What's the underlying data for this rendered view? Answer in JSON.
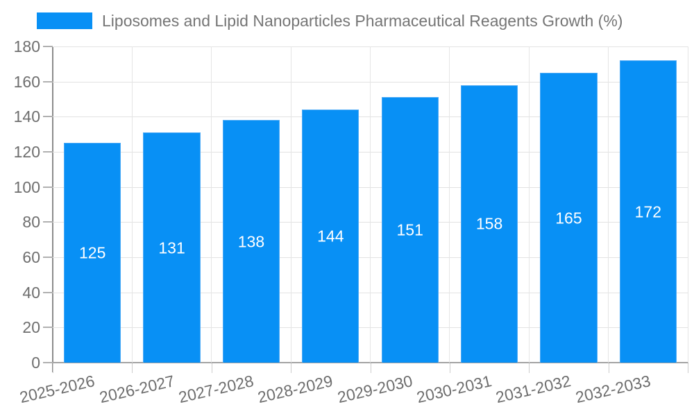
{
  "chart_data": {
    "type": "bar",
    "title": "",
    "legend_label": "Liposomes and Lipid Nanoparticles Pharmaceutical Reagents Growth (%)",
    "legend_position": "top-left",
    "categories": [
      "2025-2026",
      "2026-2027",
      "2027-2028",
      "2028-2029",
      "2029-2030",
      "2030-2031",
      "2031-2032",
      "2032-2033"
    ],
    "values": [
      125,
      131,
      138,
      144,
      151,
      158,
      165,
      172
    ],
    "xlabel": "",
    "ylabel": "",
    "ylim": [
      0,
      180
    ],
    "yticks": [
      0,
      20,
      40,
      60,
      80,
      100,
      120,
      140,
      160,
      180
    ],
    "grid": true,
    "value_labels_shown": true,
    "colors": {
      "bar_fill": "#0890f5",
      "bar_border": "#4daaf6",
      "value_text": "#ffffff",
      "axis_label_text": "#6e6e6e",
      "legend_text": "#757575",
      "gridline": "#e2e2e2",
      "axis_line": "#8c8c8c",
      "background": "#ffffff"
    }
  }
}
